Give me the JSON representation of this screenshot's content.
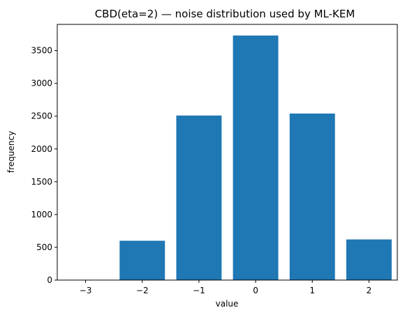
{
  "chart_data": {
    "type": "bar",
    "title": "CBD(eta=2) — noise distribution used by ML-KEM",
    "xlabel": "value",
    "ylabel": "frequency",
    "categories": [
      -3,
      -2,
      -1,
      0,
      1,
      2
    ],
    "x_tick_labels": [
      "−3",
      "−2",
      "−1",
      "0",
      "1",
      "2"
    ],
    "values": [
      0,
      600,
      2510,
      3730,
      2540,
      620
    ],
    "xlim": [
      -3.5,
      2.5
    ],
    "ylim": [
      0,
      3900
    ],
    "y_ticks": [
      0,
      500,
      1000,
      1500,
      2000,
      2500,
      3000,
      3500
    ],
    "grid": false,
    "legend": "none",
    "bar_color": "#1f77b4"
  }
}
